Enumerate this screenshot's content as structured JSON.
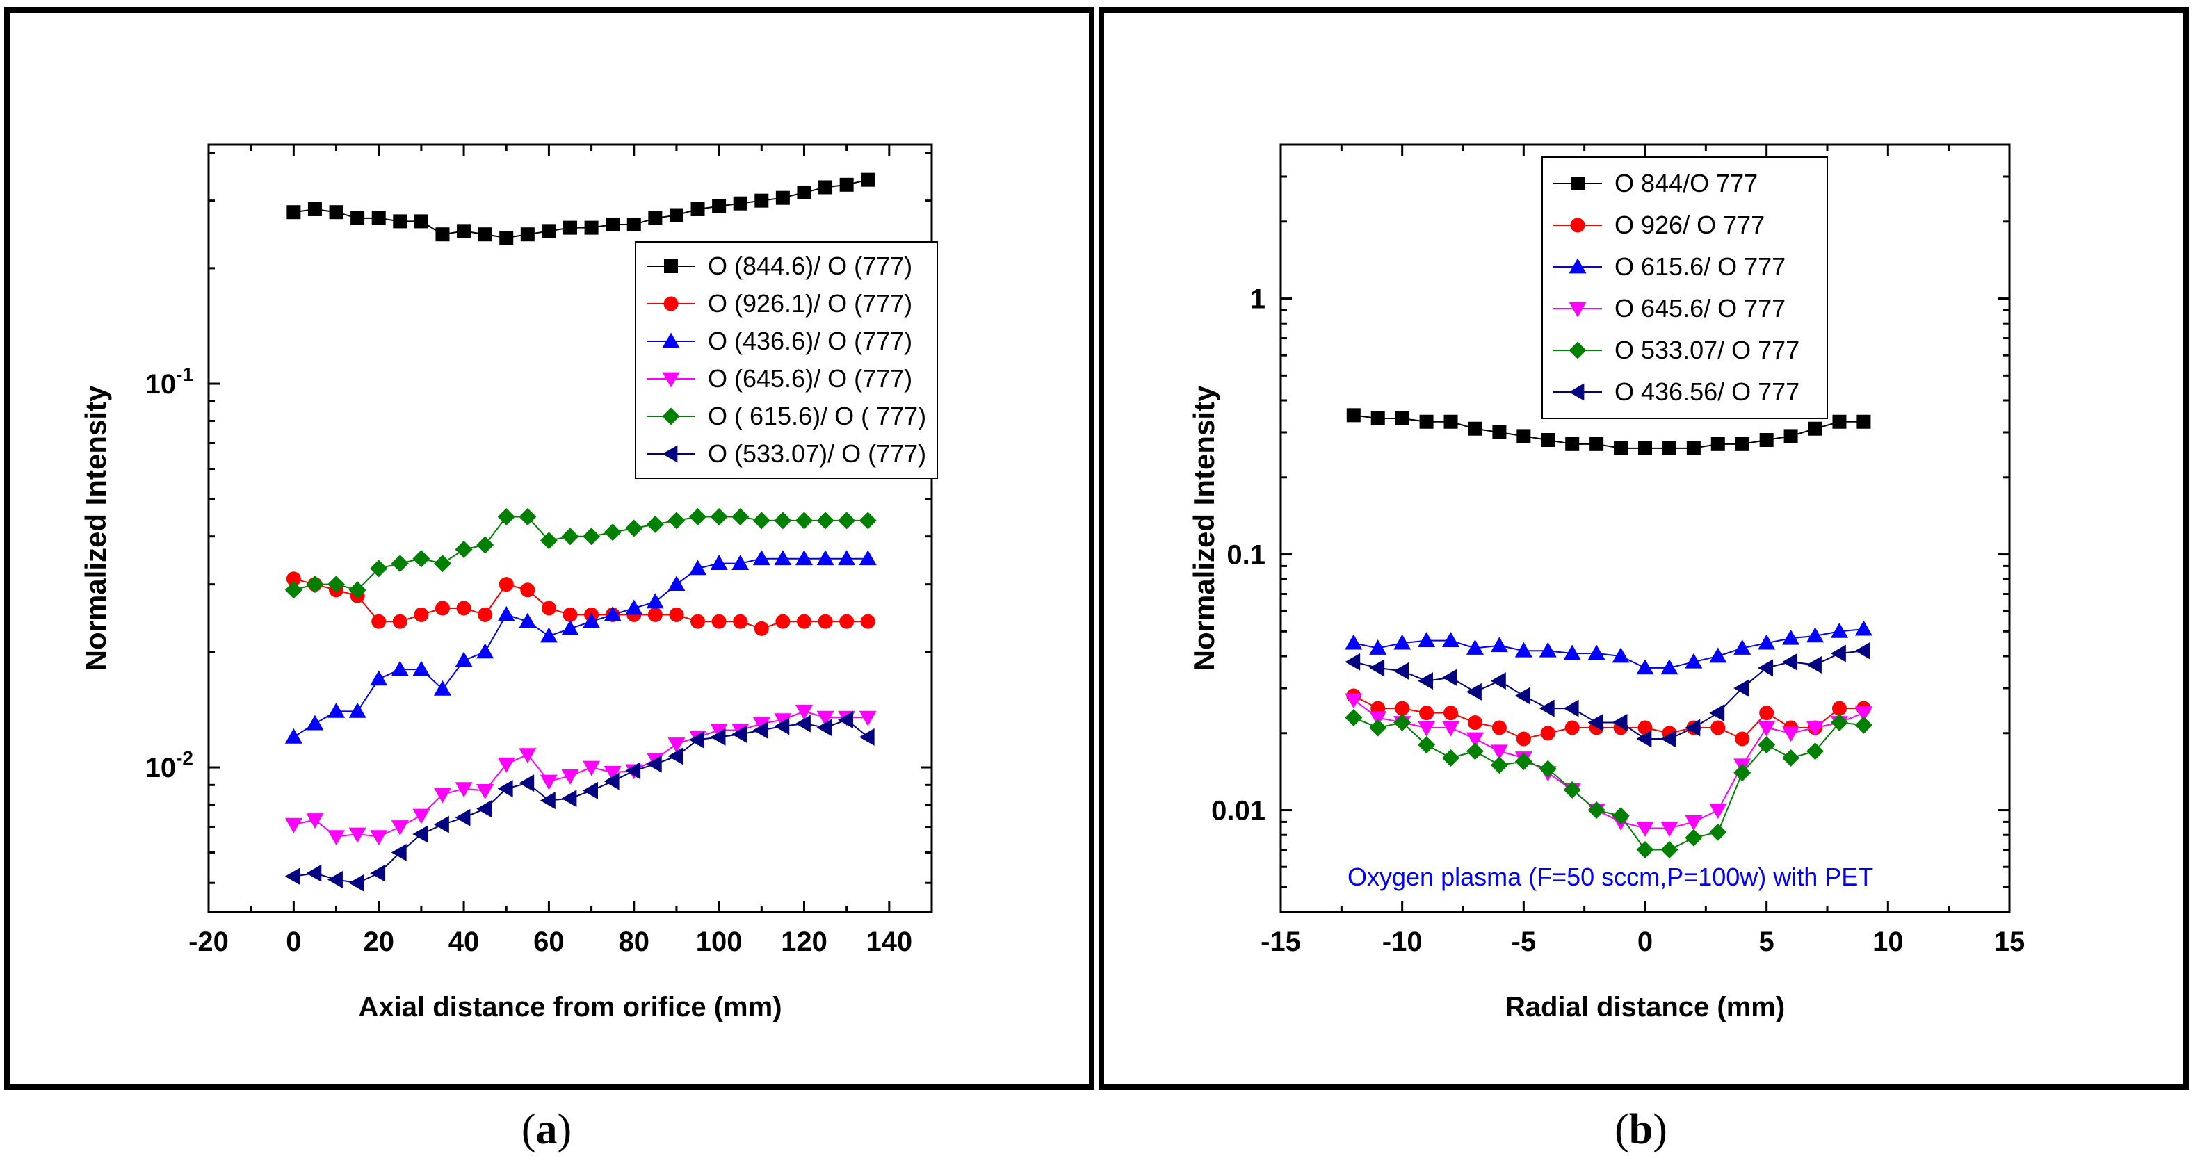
{
  "captions": {
    "a_label": "a",
    "b_label": "b"
  },
  "chart_data": [
    {
      "id": "a",
      "type": "scatter",
      "xlabel": "Axial distance from orifice (mm)",
      "ylabel": "Normalized Intensity",
      "xlim": [
        -20,
        150
      ],
      "xscale": "linear",
      "yscale": "log",
      "ylim": [
        0.0042,
        0.42
      ],
      "xticks": [
        -20,
        0,
        20,
        40,
        60,
        80,
        100,
        120,
        140
      ],
      "yticks": [
        {
          "value": 0.1,
          "base": "10",
          "exp": "-1"
        },
        {
          "value": 0.01,
          "base": "10",
          "exp": "-2"
        }
      ],
      "legend_position": "top-right",
      "annotation": "",
      "x": [
        0,
        5,
        10,
        15,
        20,
        25,
        30,
        35,
        40,
        45,
        50,
        55,
        60,
        65,
        70,
        75,
        80,
        85,
        90,
        95,
        100,
        105,
        110,
        115,
        120,
        125,
        130,
        135
      ],
      "series": [
        {
          "name": "O (844.6)/ O (777)",
          "marker": "square",
          "color": "#000000",
          "values": [
            0.28,
            0.285,
            0.28,
            0.27,
            0.27,
            0.265,
            0.265,
            0.245,
            0.25,
            0.245,
            0.24,
            0.245,
            0.25,
            0.255,
            0.255,
            0.26,
            0.26,
            0.27,
            0.275,
            0.285,
            0.29,
            0.295,
            0.3,
            0.305,
            0.315,
            0.325,
            0.33,
            0.34
          ]
        },
        {
          "name": "O (926.1)/ O (777)",
          "marker": "circle",
          "color": "#ff0000",
          "values": [
            0.031,
            0.03,
            0.029,
            0.028,
            0.024,
            0.024,
            0.025,
            0.026,
            0.026,
            0.025,
            0.03,
            0.029,
            0.026,
            0.025,
            0.025,
            0.025,
            0.025,
            0.025,
            0.025,
            0.024,
            0.024,
            0.024,
            0.023,
            0.024,
            0.024,
            0.024,
            0.024,
            0.024
          ]
        },
        {
          "name": "O (436.6)/ O (777)",
          "marker": "triangle-up",
          "color": "#0000ff",
          "values": [
            0.012,
            0.013,
            0.014,
            0.014,
            0.017,
            0.018,
            0.018,
            0.016,
            0.019,
            0.02,
            0.025,
            0.024,
            0.022,
            0.023,
            0.024,
            0.025,
            0.026,
            0.027,
            0.03,
            0.033,
            0.034,
            0.034,
            0.035,
            0.035,
            0.035,
            0.035,
            0.035,
            0.035
          ]
        },
        {
          "name": "O (645.6)/ O (777)",
          "marker": "triangle-down",
          "color": "#ff00ff",
          "values": [
            0.0071,
            0.0073,
            0.0066,
            0.0067,
            0.0066,
            0.007,
            0.0075,
            0.0085,
            0.0088,
            0.0087,
            0.0102,
            0.0108,
            0.0092,
            0.0095,
            0.01,
            0.0097,
            0.0098,
            0.0105,
            0.0115,
            0.012,
            0.0125,
            0.0125,
            0.013,
            0.0133,
            0.014,
            0.0135,
            0.0135,
            0.0135
          ]
        },
        {
          "name": "O ( 615.6)/ O ( 777)",
          "marker": "diamond",
          "color": "#008000",
          "values": [
            0.029,
            0.03,
            0.03,
            0.029,
            0.033,
            0.034,
            0.035,
            0.034,
            0.037,
            0.038,
            0.045,
            0.045,
            0.039,
            0.04,
            0.04,
            0.041,
            0.042,
            0.043,
            0.044,
            0.045,
            0.045,
            0.045,
            0.044,
            0.044,
            0.044,
            0.044,
            0.044,
            0.044
          ]
        },
        {
          "name": "O (533.07)/ O (777)",
          "marker": "triangle-left",
          "color": "#000080",
          "values": [
            0.0052,
            0.0053,
            0.0051,
            0.005,
            0.0053,
            0.006,
            0.0067,
            0.0071,
            0.0074,
            0.0078,
            0.0088,
            0.0091,
            0.0082,
            0.0083,
            0.0087,
            0.0092,
            0.0098,
            0.0102,
            0.0107,
            0.0118,
            0.012,
            0.0122,
            0.0125,
            0.0128,
            0.013,
            0.0127,
            0.0133,
            0.012
          ]
        }
      ]
    },
    {
      "id": "b",
      "type": "scatter",
      "xlabel": "Radial distance (mm)",
      "ylabel": "Normalized Intensity",
      "xlim": [
        -15,
        15
      ],
      "xscale": "linear",
      "yscale": "log",
      "ylim": [
        0.004,
        4.0
      ],
      "xticks": [
        -15,
        -10,
        -5,
        0,
        5,
        10,
        15
      ],
      "yticks": [
        {
          "value": 1,
          "label": "1"
        },
        {
          "value": 0.1,
          "label": "0.1"
        },
        {
          "value": 0.01,
          "label": "0.01"
        }
      ],
      "legend_position": "top-left",
      "annotation": "Oxygen plasma (F=50 sccm,P=100w) with PET",
      "annotation_color": "#0000ff",
      "x": [
        -12,
        -11,
        -10,
        -9,
        -8,
        -7,
        -6,
        -5,
        -4,
        -3,
        -2,
        -1,
        0,
        1,
        2,
        3,
        4,
        5,
        6,
        7,
        8,
        9
      ],
      "series": [
        {
          "name": "O 844/O 777",
          "marker": "square",
          "color": "#000000",
          "values": [
            0.35,
            0.34,
            0.34,
            0.33,
            0.33,
            0.31,
            0.3,
            0.29,
            0.28,
            0.27,
            0.27,
            0.26,
            0.26,
            0.26,
            0.26,
            0.27,
            0.27,
            0.28,
            0.29,
            0.31,
            0.33,
            0.33
          ]
        },
        {
          "name": "O 926/ O 777",
          "marker": "circle",
          "color": "#ff0000",
          "values": [
            0.028,
            0.025,
            0.025,
            0.024,
            0.024,
            0.022,
            0.021,
            0.019,
            0.02,
            0.021,
            0.021,
            0.021,
            0.021,
            0.02,
            0.021,
            0.021,
            0.019,
            0.024,
            0.021,
            0.021,
            0.025,
            0.025
          ]
        },
        {
          "name": "O 615.6/ O 777",
          "marker": "triangle-up",
          "color": "#0000ff",
          "values": [
            0.045,
            0.043,
            0.045,
            0.046,
            0.046,
            0.043,
            0.044,
            0.042,
            0.042,
            0.041,
            0.041,
            0.04,
            0.036,
            0.036,
            0.038,
            0.04,
            0.043,
            0.045,
            0.047,
            0.048,
            0.05,
            0.051
          ]
        },
        {
          "name": "O 645.6/ O 777",
          "marker": "triangle-down",
          "color": "#ff00ff",
          "values": [
            0.027,
            0.023,
            0.022,
            0.021,
            0.021,
            0.019,
            0.017,
            0.016,
            0.014,
            0.012,
            0.01,
            0.009,
            0.0085,
            0.0085,
            0.009,
            0.01,
            0.015,
            0.021,
            0.02,
            0.021,
            0.022,
            0.024
          ]
        },
        {
          "name": "O 533.07/ O 777",
          "marker": "diamond",
          "color": "#008000",
          "values": [
            0.023,
            0.021,
            0.022,
            0.018,
            0.016,
            0.017,
            0.015,
            0.0155,
            0.0145,
            0.012,
            0.01,
            0.0095,
            0.007,
            0.007,
            0.0078,
            0.0082,
            0.014,
            0.018,
            0.016,
            0.017,
            0.022,
            0.0215
          ]
        },
        {
          "name": "O 436.56/ O 777",
          "marker": "triangle-left",
          "color": "#000080",
          "values": [
            0.038,
            0.036,
            0.035,
            0.032,
            0.033,
            0.029,
            0.032,
            0.028,
            0.025,
            0.025,
            0.022,
            0.022,
            0.019,
            0.019,
            0.021,
            0.024,
            0.03,
            0.036,
            0.038,
            0.037,
            0.041,
            0.042
          ]
        }
      ]
    }
  ]
}
